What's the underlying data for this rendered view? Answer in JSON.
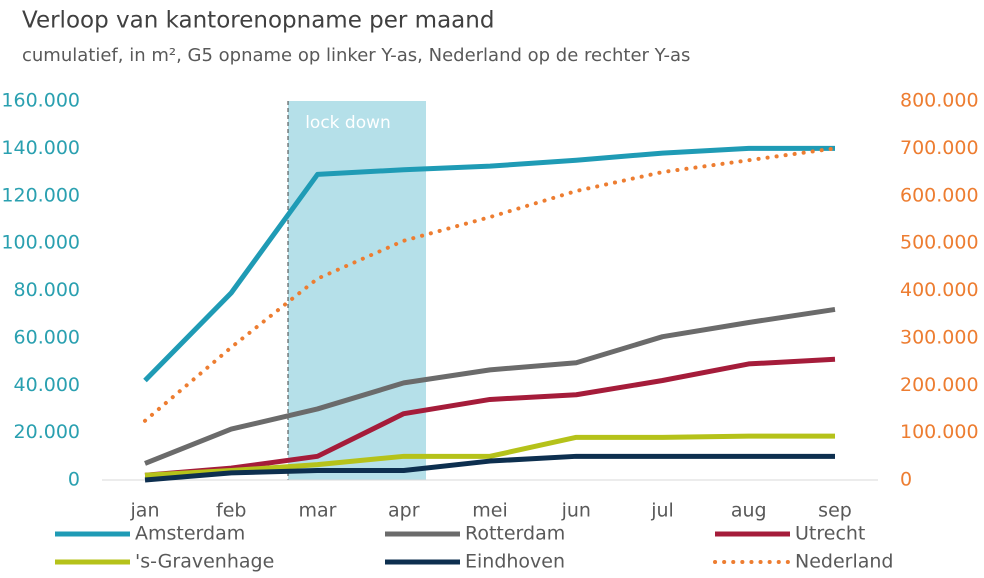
{
  "chart_data": {
    "type": "line",
    "title": "Verloop van kantorenopname per maand",
    "subtitle": "cumulatief, in m², G5 opname op linker Y-as, Nederland op de rechter Y-as",
    "annotation": "lock down",
    "categories": [
      "jan",
      "feb",
      "mar",
      "apr",
      "mei",
      "jun",
      "jul",
      "aug",
      "sep"
    ],
    "series": [
      {
        "name": "Amsterdam",
        "color": "#1f9bb5",
        "values": [
          42000,
          79000,
          129000,
          131000,
          132500,
          135000,
          138000,
          140000,
          140000
        ]
      },
      {
        "name": "Rotterdam",
        "color": "#6b6b6b",
        "values": [
          7000,
          21500,
          30000,
          41000,
          46500,
          49500,
          60500,
          66500,
          72000
        ]
      },
      {
        "name": "Utrecht",
        "color": "#a51c3a",
        "values": [
          2000,
          5000,
          10000,
          28000,
          34000,
          36000,
          42000,
          49000,
          51000
        ]
      },
      {
        "name": "'s-Gravenhage",
        "color": "#b5c21a",
        "values": [
          2000,
          4000,
          6500,
          10000,
          10000,
          18000,
          18000,
          18500,
          18500
        ]
      },
      {
        "name": "Eindhoven",
        "color": "#0d2f4f",
        "values": [
          0,
          3000,
          4000,
          4000,
          8000,
          10000,
          10000,
          10000,
          10000
        ]
      },
      {
        "name": "Nederland",
        "color": "#ed7d31",
        "axis": "y2",
        "dashed": true,
        "values": [
          125000,
          280000,
          425000,
          505000,
          555000,
          610000,
          650000,
          675000,
          700000
        ]
      }
    ],
    "ylim": [
      0,
      160000
    ],
    "yticks": [
      0,
      {
        "value": 20000,
        "label": "20.000"
      },
      {
        "value": 40000,
        "label": "40.000"
      },
      {
        "value": 60000,
        "label": "60.000"
      },
      {
        "value": 80000,
        "label": "80.000"
      },
      {
        "value": 100000,
        "label": "100.000"
      },
      {
        "value": 120000,
        "label": "120.000"
      },
      {
        "value": 140000,
        "label": "140.000"
      },
      {
        "value": 160000,
        "label": "160.000"
      }
    ],
    "y2lim": [
      0,
      800000
    ],
    "y2ticks": [
      0,
      {
        "value": 100000,
        "label": "100.000"
      },
      {
        "value": 200000,
        "label": "200.000"
      },
      {
        "value": 300000,
        "label": "300.000"
      },
      {
        "value": 400000,
        "label": "400.000"
      },
      {
        "value": 500000,
        "label": "500.000"
      },
      {
        "value": 600000,
        "label": "600.000"
      },
      {
        "value": 700000,
        "label": "700.000"
      },
      {
        "value": 800000,
        "label": "800.000"
      }
    ],
    "grid": false
  }
}
